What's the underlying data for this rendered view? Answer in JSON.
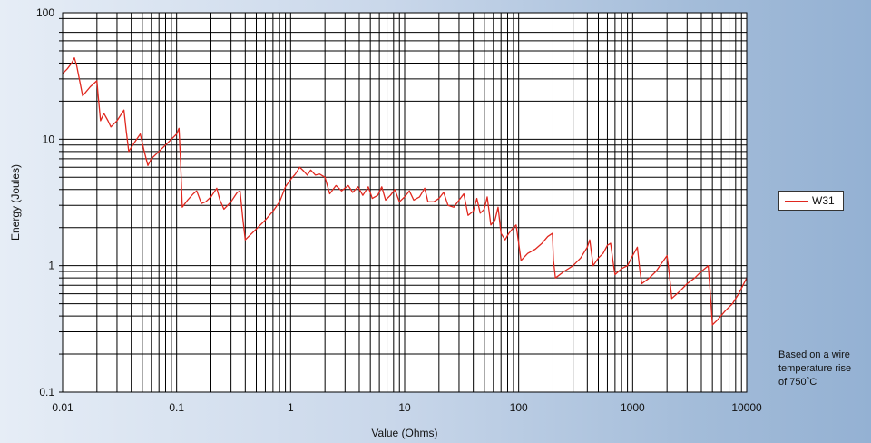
{
  "chart_data": {
    "type": "line",
    "xscale": "log",
    "yscale": "log",
    "xlim": [
      0.01,
      10000
    ],
    "ylim": [
      0.1,
      100
    ],
    "xlabel": "Value (Ohms)",
    "ylabel": "Energy (Joules)",
    "xticks": [
      "0.01",
      "0.1",
      "1",
      "10",
      "100",
      "1000",
      "10000"
    ],
    "yticks": [
      "0.1",
      "1",
      "10",
      "100"
    ],
    "grid": true,
    "legend_position": "right",
    "series_color": "#e0271e",
    "series": [
      {
        "name": "W31",
        "points": [
          [
            0.01,
            33
          ],
          [
            0.011,
            36
          ],
          [
            0.012,
            40
          ],
          [
            0.0127,
            44
          ],
          [
            0.0133,
            38
          ],
          [
            0.014,
            30
          ],
          [
            0.015,
            22
          ],
          [
            0.0175,
            26
          ],
          [
            0.02,
            29
          ],
          [
            0.0205,
            22
          ],
          [
            0.0215,
            14
          ],
          [
            0.023,
            16
          ],
          [
            0.025,
            14
          ],
          [
            0.0265,
            12.5
          ],
          [
            0.03,
            14
          ],
          [
            0.0345,
            17
          ],
          [
            0.036,
            12
          ],
          [
            0.038,
            8
          ],
          [
            0.043,
            9.5
          ],
          [
            0.048,
            11
          ],
          [
            0.052,
            8
          ],
          [
            0.056,
            6.2
          ],
          [
            0.06,
            7
          ],
          [
            0.07,
            8
          ],
          [
            0.08,
            9
          ],
          [
            0.09,
            10
          ],
          [
            0.1,
            11
          ],
          [
            0.105,
            12.2
          ],
          [
            0.108,
            7
          ],
          [
            0.112,
            2.9
          ],
          [
            0.125,
            3.3
          ],
          [
            0.14,
            3.7
          ],
          [
            0.15,
            3.9
          ],
          [
            0.165,
            3.1
          ],
          [
            0.18,
            3.2
          ],
          [
            0.2,
            3.5
          ],
          [
            0.225,
            4.1
          ],
          [
            0.24,
            3.3
          ],
          [
            0.26,
            2.8
          ],
          [
            0.3,
            3.2
          ],
          [
            0.34,
            3.8
          ],
          [
            0.36,
            3.9
          ],
          [
            0.38,
            2.4
          ],
          [
            0.4,
            1.6
          ],
          [
            0.5,
            1.95
          ],
          [
            0.6,
            2.3
          ],
          [
            0.7,
            2.7
          ],
          [
            0.8,
            3.2
          ],
          [
            0.9,
            4.2
          ],
          [
            1.0,
            4.8
          ],
          [
            1.1,
            5.3
          ],
          [
            1.2,
            6.0
          ],
          [
            1.3,
            5.6
          ],
          [
            1.4,
            5.2
          ],
          [
            1.5,
            5.7
          ],
          [
            1.65,
            5.2
          ],
          [
            1.8,
            5.3
          ],
          [
            2.0,
            5.0
          ],
          [
            2.1,
            4.3
          ],
          [
            2.2,
            3.7
          ],
          [
            2.5,
            4.3
          ],
          [
            2.8,
            3.9
          ],
          [
            3.2,
            4.3
          ],
          [
            3.5,
            3.8
          ],
          [
            3.9,
            4.2
          ],
          [
            4.3,
            3.6
          ],
          [
            4.8,
            4.2
          ],
          [
            5.2,
            3.4
          ],
          [
            5.8,
            3.6
          ],
          [
            6.3,
            4.2
          ],
          [
            6.8,
            3.3
          ],
          [
            7.5,
            3.6
          ],
          [
            8.2,
            4.0
          ],
          [
            9.0,
            3.2
          ],
          [
            10,
            3.5
          ],
          [
            11,
            3.9
          ],
          [
            12,
            3.3
          ],
          [
            13.5,
            3.5
          ],
          [
            15,
            4.1
          ],
          [
            16,
            3.2
          ],
          [
            18,
            3.2
          ],
          [
            20,
            3.4
          ],
          [
            22,
            3.8
          ],
          [
            24,
            3.0
          ],
          [
            27,
            2.9
          ],
          [
            30,
            3.3
          ],
          [
            33,
            3.7
          ],
          [
            36,
            2.5
          ],
          [
            40,
            2.7
          ],
          [
            43,
            3.4
          ],
          [
            46,
            2.6
          ],
          [
            50,
            2.8
          ],
          [
            53,
            3.5
          ],
          [
            57,
            2.1
          ],
          [
            62,
            2.3
          ],
          [
            66,
            2.9
          ],
          [
            70,
            1.8
          ],
          [
            76,
            1.6
          ],
          [
            82,
            1.8
          ],
          [
            90,
            2.0
          ],
          [
            95,
            2.1
          ],
          [
            100,
            1.5
          ],
          [
            105,
            1.1
          ],
          [
            120,
            1.25
          ],
          [
            140,
            1.35
          ],
          [
            160,
            1.5
          ],
          [
            180,
            1.7
          ],
          [
            198,
            1.8
          ],
          [
            202,
            1.1
          ],
          [
            210,
            0.8
          ],
          [
            250,
            0.9
          ],
          [
            300,
            1.0
          ],
          [
            350,
            1.15
          ],
          [
            400,
            1.4
          ],
          [
            420,
            1.6
          ],
          [
            450,
            1.0
          ],
          [
            500,
            1.15
          ],
          [
            550,
            1.25
          ],
          [
            600,
            1.45
          ],
          [
            640,
            1.5
          ],
          [
            680,
            1.0
          ],
          [
            700,
            0.85
          ],
          [
            800,
            0.95
          ],
          [
            900,
            1.0
          ],
          [
            1000,
            1.2
          ],
          [
            1100,
            1.4
          ],
          [
            1150,
            0.95
          ],
          [
            1200,
            0.72
          ],
          [
            1400,
            0.8
          ],
          [
            1600,
            0.9
          ],
          [
            1800,
            1.05
          ],
          [
            2000,
            1.2
          ],
          [
            2100,
            0.85
          ],
          [
            2200,
            0.55
          ],
          [
            2600,
            0.63
          ],
          [
            3000,
            0.72
          ],
          [
            3500,
            0.8
          ],
          [
            4000,
            0.9
          ],
          [
            4600,
            1.0
          ],
          [
            4800,
            0.6
          ],
          [
            5000,
            0.34
          ],
          [
            5500,
            0.37
          ],
          [
            6500,
            0.44
          ],
          [
            7500,
            0.5
          ],
          [
            8500,
            0.6
          ],
          [
            10000,
            0.8
          ]
        ]
      }
    ]
  },
  "legend": {
    "label": "W31"
  },
  "note": "Based on a wire\ntemperature rise\nof 750˚C"
}
